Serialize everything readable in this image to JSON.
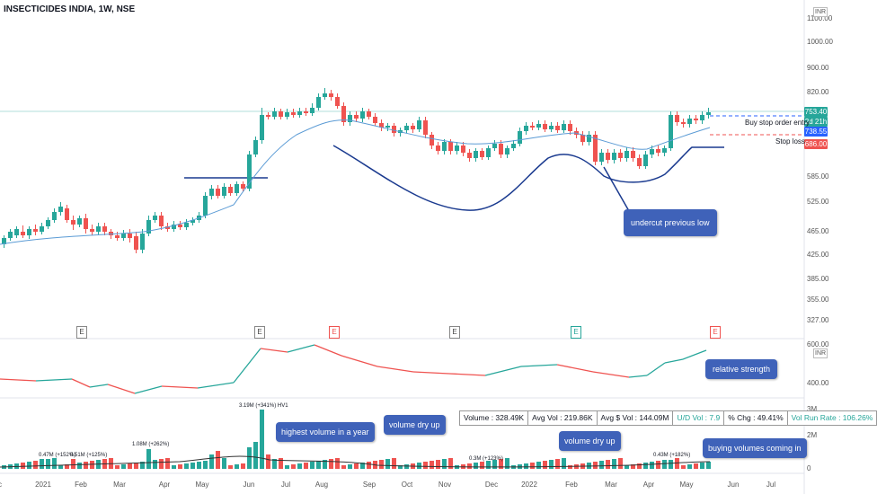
{
  "header": {
    "title": "INSECTICIDES INDIA, 1W, NSE",
    "currency": "INR"
  },
  "price_axis": {
    "labels": [
      "1100.00",
      "1000.00",
      "900.00",
      "820.00",
      "753.40",
      "738.55",
      "686.00",
      "585.00",
      "525.00",
      "465.00",
      "425.00",
      "385.00",
      "355.00",
      "327.00"
    ],
    "current_price": "753.40",
    "countdown": "2d 21h",
    "buy_stop_price": "738.55",
    "stop_loss_price": "686.00"
  },
  "levels": {
    "buy_stop_label": "Buy stop order entry",
    "stop_loss_label": "Stop loss"
  },
  "rs_axis": {
    "labels": [
      "600.00",
      "400.00"
    ],
    "currency": "INR"
  },
  "vol_axis": {
    "labels": [
      "3M",
      "2M",
      "0"
    ]
  },
  "time_axis": {
    "labels": [
      "c",
      "2021",
      "Feb",
      "Mar",
      "Apr",
      "May",
      "Jun",
      "Jul",
      "Aug",
      "Sep",
      "Oct",
      "Nov",
      "Dec",
      "2022",
      "Feb",
      "Mar",
      "Apr",
      "May",
      "Jun",
      "Jul"
    ]
  },
  "annotations": {
    "undercut": "undercut previous low",
    "relative_strength": "relative strength",
    "highest_volume": "highest volume in a year",
    "volume_dry_up_1": "volume dry up",
    "volume_dry_up_2": "volume dry up",
    "buying_volumes": "buying volumes coming in"
  },
  "volume_labels": {
    "v1": "0.47M (+152%)",
    "v2": "0.51M (+125%)",
    "v3": "1.08M (+262%)",
    "v4": "3.19M (+341%) HV1",
    "v5": "0.3M (+123%)",
    "v6": "0.43M (+182%)"
  },
  "stats": {
    "volume": "Volume : 328.49K",
    "avg_vol": "Avg Vol : 219.86K",
    "avg_dollar_vol": "Avg $ Vol : 144.09M",
    "ud_vol": "U/D Vol : 7.9",
    "pct_chg": "% Chg : 49.41%",
    "vol_run_rate": "Vol Run Rate : 106.26%"
  },
  "earnings_marker": "E",
  "colors": {
    "up": "#26a69a",
    "down": "#ef5350",
    "ma": "#5b9bd5",
    "annotation_line": "#1a3a8f",
    "callout": "#3f62b9",
    "buy": "#2962ff",
    "stop": "#ef5350"
  }
}
